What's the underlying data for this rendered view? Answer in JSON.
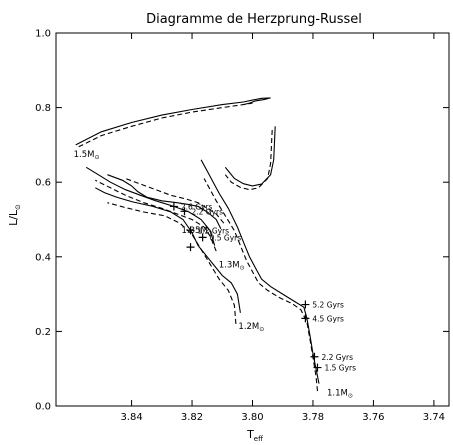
{
  "chart_data": {
    "type": "line",
    "title": "Diagramme de Herzprung-Russel",
    "xlabel": "T",
    "xlabel_sub": "eff",
    "ylabel": "L/L",
    "ylabel_sub": "⊙",
    "xlim": [
      3.865,
      3.735
    ],
    "ylim": [
      0.0,
      1.0
    ],
    "x_reversed": true,
    "x_ticks": [
      "3.84",
      "3.82",
      "3.80",
      "3.78",
      "3.76",
      "3.74"
    ],
    "y_ticks": [
      "0.0",
      "0.2",
      "0.4",
      "0.6",
      "0.8",
      "1.0"
    ],
    "grid": false,
    "series_styles": [
      "solid",
      "dashed"
    ],
    "tracks": [
      {
        "mass_label": "1.5M",
        "solid": [
          [
            3.8585,
            0.7
          ],
          [
            3.85,
            0.735
          ],
          [
            3.84,
            0.76
          ],
          [
            3.83,
            0.78
          ],
          [
            3.82,
            0.795
          ],
          [
            3.81,
            0.808
          ],
          [
            3.803,
            0.815
          ],
          [
            3.8,
            0.82
          ],
          [
            3.797,
            0.825
          ],
          [
            3.794,
            0.826
          ],
          [
            3.796,
            0.822
          ],
          [
            3.799,
            0.818
          ],
          [
            3.801,
            0.812
          ],
          [
            3.803,
            0.808
          ]
        ],
        "dashed": [
          [
            3.8575,
            0.695
          ],
          [
            3.85,
            0.725
          ],
          [
            3.84,
            0.75
          ],
          [
            3.83,
            0.772
          ],
          [
            3.82,
            0.788
          ],
          [
            3.81,
            0.8
          ],
          [
            3.803,
            0.808
          ],
          [
            3.8,
            0.812
          ]
        ]
      },
      {
        "mass_label": "1.35M",
        "solid": [
          [
            3.8105,
            0.475
          ],
          [
            3.812,
            0.5
          ],
          [
            3.815,
            0.52
          ],
          [
            3.818,
            0.535
          ],
          [
            3.821,
            0.54
          ],
          [
            3.825,
            0.545
          ],
          [
            3.83,
            0.55
          ],
          [
            3.835,
            0.56
          ],
          [
            3.838,
            0.575
          ],
          [
            3.84,
            0.59
          ],
          [
            3.843,
            0.605
          ],
          [
            3.848,
            0.62
          ]
        ],
        "dashed": [
          [
            3.8095,
            0.49
          ],
          [
            3.812,
            0.515
          ],
          [
            3.815,
            0.53
          ],
          [
            3.818,
            0.545
          ],
          [
            3.822,
            0.555
          ],
          [
            3.827,
            0.565
          ],
          [
            3.832,
            0.58
          ],
          [
            3.837,
            0.595
          ],
          [
            3.842,
            0.61
          ]
        ]
      },
      {
        "mass_label": "1.3M",
        "solid": [
          [
            3.8125,
            0.43
          ],
          [
            3.814,
            0.47
          ],
          [
            3.817,
            0.5
          ],
          [
            3.821,
            0.52
          ],
          [
            3.826,
            0.535
          ],
          [
            3.832,
            0.55
          ],
          [
            3.837,
            0.565
          ],
          [
            3.842,
            0.58
          ],
          [
            3.847,
            0.6
          ],
          [
            3.851,
            0.62
          ],
          [
            3.855,
            0.64
          ]
        ],
        "dashed": [
          [
            3.812,
            0.415
          ],
          [
            3.814,
            0.455
          ],
          [
            3.816,
            0.48
          ],
          [
            3.82,
            0.5
          ],
          [
            3.825,
            0.515
          ],
          [
            3.83,
            0.53
          ],
          [
            3.836,
            0.545
          ],
          [
            3.842,
            0.565
          ],
          [
            3.847,
            0.585
          ],
          [
            3.852,
            0.605
          ]
        ]
      },
      {
        "mass_label": "1.2M",
        "solid": [
          [
            3.804,
            0.25
          ],
          [
            3.805,
            0.3
          ],
          [
            3.807,
            0.33
          ],
          [
            3.81,
            0.35
          ],
          [
            3.812,
            0.37
          ],
          [
            3.815,
            0.4
          ],
          [
            3.818,
            0.43
          ],
          [
            3.82,
            0.465
          ],
          [
            3.823,
            0.5
          ],
          [
            3.827,
            0.52
          ],
          [
            3.833,
            0.535
          ],
          [
            3.84,
            0.548
          ],
          [
            3.845,
            0.56
          ],
          [
            3.849,
            0.572
          ],
          [
            3.852,
            0.585
          ]
        ],
        "dashed": [
          [
            3.8055,
            0.22
          ],
          [
            3.806,
            0.27
          ],
          [
            3.808,
            0.31
          ],
          [
            3.811,
            0.34
          ],
          [
            3.814,
            0.38
          ],
          [
            3.817,
            0.42
          ],
          [
            3.82,
            0.46
          ],
          [
            3.824,
            0.49
          ],
          [
            3.829,
            0.51
          ],
          [
            3.836,
            0.52
          ],
          [
            3.842,
            0.532
          ],
          [
            3.848,
            0.545
          ]
        ]
      },
      {
        "mass_label": "1.1M",
        "solid": [
          [
            3.778,
            0.06
          ],
          [
            3.779,
            0.1
          ],
          [
            3.78,
            0.14
          ],
          [
            3.781,
            0.19
          ],
          [
            3.782,
            0.235
          ],
          [
            3.783,
            0.265
          ],
          [
            3.786,
            0.28
          ],
          [
            3.79,
            0.3
          ],
          [
            3.794,
            0.32
          ],
          [
            3.797,
            0.34
          ],
          [
            3.799,
            0.37
          ],
          [
            3.801,
            0.4
          ],
          [
            3.803,
            0.44
          ],
          [
            3.805,
            0.48
          ],
          [
            3.808,
            0.53
          ],
          [
            3.811,
            0.57
          ],
          [
            3.813,
            0.6
          ],
          [
            3.815,
            0.63
          ],
          [
            3.817,
            0.66
          ]
        ],
        "dashed": [
          [
            3.7785,
            0.04
          ],
          [
            3.779,
            0.08
          ],
          [
            3.78,
            0.13
          ],
          [
            3.781,
            0.18
          ],
          [
            3.782,
            0.225
          ],
          [
            3.784,
            0.258
          ],
          [
            3.787,
            0.275
          ],
          [
            3.791,
            0.29
          ],
          [
            3.795,
            0.31
          ],
          [
            3.798,
            0.33
          ],
          [
            3.8,
            0.36
          ],
          [
            3.802,
            0.39
          ],
          [
            3.804,
            0.43
          ],
          [
            3.806,
            0.47
          ],
          [
            3.809,
            0.51
          ],
          [
            3.812,
            0.55
          ],
          [
            3.814,
            0.58
          ],
          [
            3.816,
            0.61
          ]
        ]
      },
      {
        "mass_label": "",
        "solid": [
          [
            3.7925,
            0.75
          ],
          [
            3.793,
            0.66
          ],
          [
            3.794,
            0.62
          ],
          [
            3.797,
            0.595
          ],
          [
            3.8,
            0.59
          ],
          [
            3.803,
            0.596
          ],
          [
            3.806,
            0.61
          ],
          [
            3.808,
            0.63
          ],
          [
            3.809,
            0.64
          ]
        ],
        "dashed": [
          [
            3.7935,
            0.74
          ],
          [
            3.794,
            0.65
          ],
          [
            3.795,
            0.61
          ],
          [
            3.798,
            0.585
          ],
          [
            3.801,
            0.58
          ],
          [
            3.804,
            0.586
          ],
          [
            3.807,
            0.6
          ],
          [
            3.809,
            0.62
          ]
        ]
      }
    ],
    "markers": [
      {
        "label": "2.6 Gyrs",
        "x": 3.826,
        "y": 0.535
      },
      {
        "label": "2.2 Gyrs",
        "x": 3.8225,
        "y": 0.522
      },
      {
        "label": "1.2 Gyrs",
        "x": 3.8205,
        "y": 0.471
      },
      {
        "label": "0.5 Gyrs",
        "x": 3.8165,
        "y": 0.452
      },
      {
        "label": "",
        "x": 3.8205,
        "y": 0.426
      },
      {
        "label": "5.2 Gyrs",
        "x": 3.7825,
        "y": 0.272
      },
      {
        "label": "4.5 Gyrs",
        "x": 3.7825,
        "y": 0.235
      },
      {
        "label": "2.2 Gyrs",
        "x": 3.7795,
        "y": 0.132
      },
      {
        "label": "1.5 Gyrs",
        "x": 3.7785,
        "y": 0.103
      }
    ]
  }
}
